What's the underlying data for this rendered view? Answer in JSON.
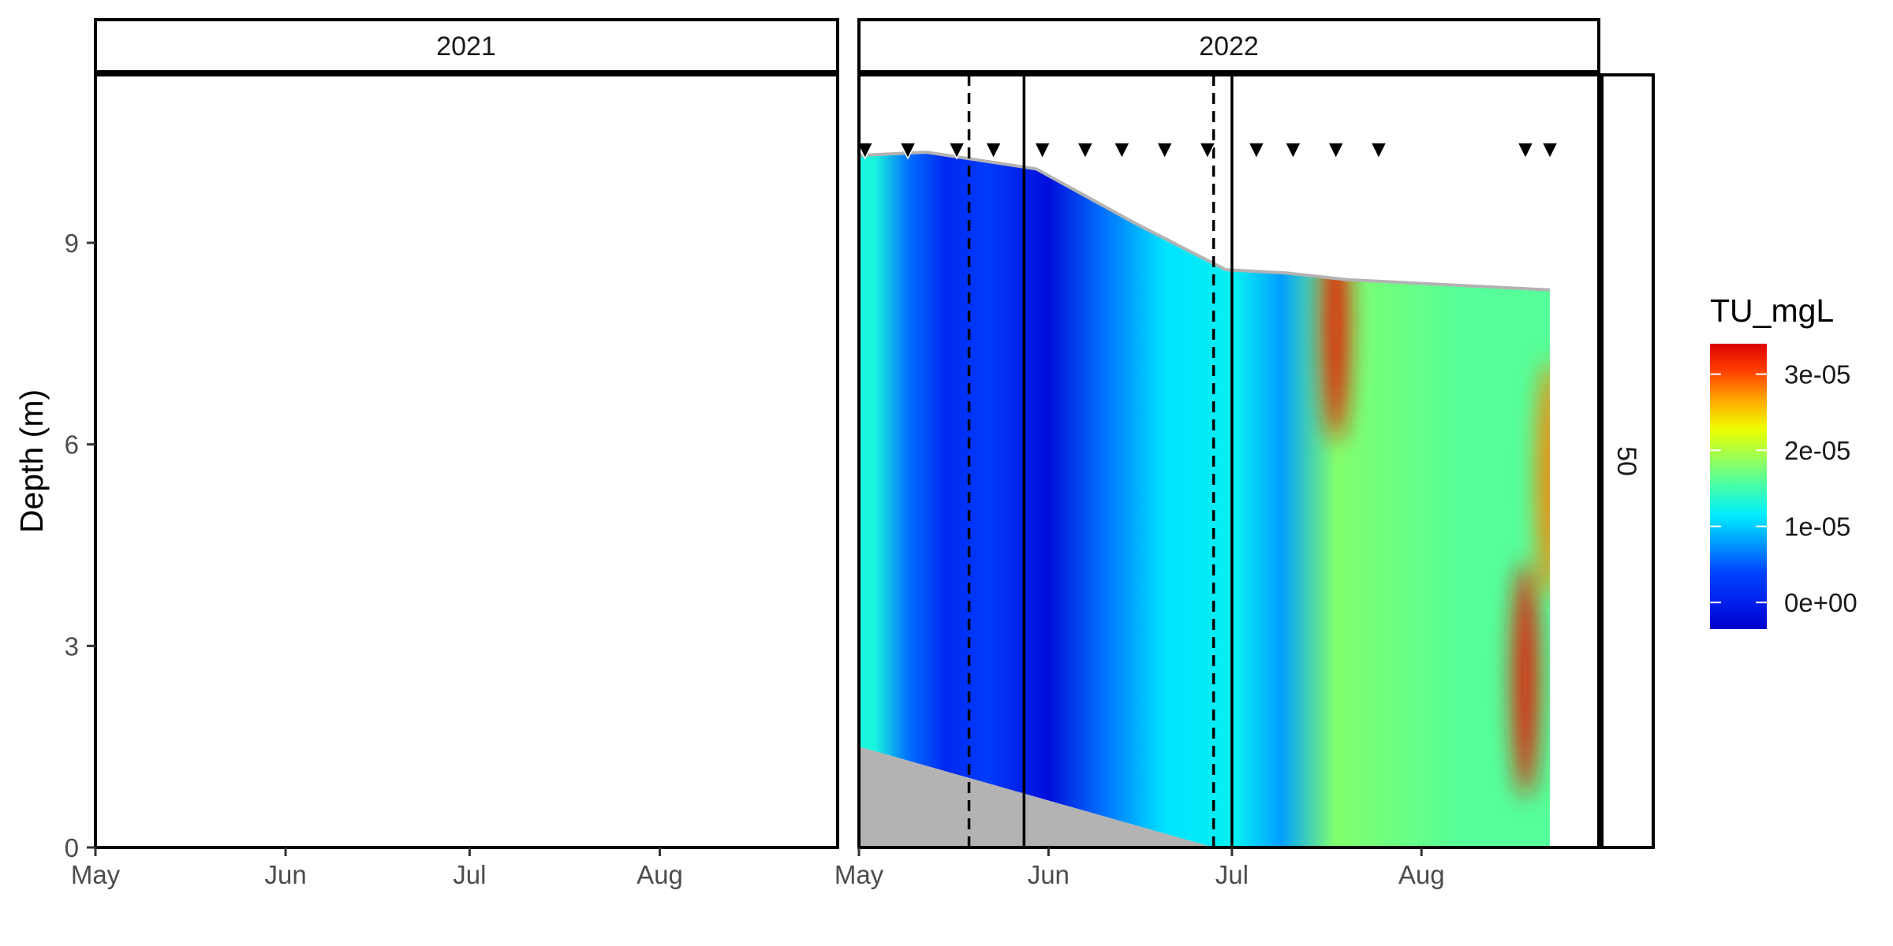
{
  "chart_data": {
    "type": "heatmap",
    "title": "",
    "ylabel": "Depth (m)",
    "xlabel": "",
    "ylim": [
      0,
      11.5
    ],
    "yticks": [
      0,
      3,
      6,
      9
    ],
    "xticks": [
      "May",
      "Jun",
      "Jul",
      "Aug"
    ],
    "x_range_doy": [
      121,
      242
    ],
    "x_tick_doy": [
      121,
      152,
      182,
      213
    ],
    "grid": false,
    "panels": [
      {
        "strip": "2021",
        "has_data": false
      },
      {
        "strip": "2022",
        "has_data": true
      }
    ],
    "row_strip": "50",
    "legend": {
      "title": "TU_mgL",
      "placement": "right",
      "breaks": [
        "0e+00",
        "1e-05",
        "2e-05",
        "3e-05"
      ],
      "break_values": [
        0,
        1e-05,
        2e-05,
        3e-05
      ],
      "range": [
        -3.5e-06,
        3.4e-05
      ],
      "colors": [
        "#0000CC",
        "#0022EE",
        "#0044FF",
        "#0099FF",
        "#00EEFF",
        "#44FFAA",
        "#99FF55",
        "#EEFF00",
        "#FFAA00",
        "#FF4400",
        "#DD0000"
      ]
    },
    "sampling_dates": [
      "2022-05-02",
      "2022-05-09",
      "2022-05-17",
      "2022-05-23",
      "2022-05-31",
      "2022-06-07",
      "2022-06-13",
      "2022-06-20",
      "2022-06-27",
      "2022-07-05",
      "2022-07-11",
      "2022-07-18",
      "2022-07-25",
      "2022-08-18",
      "2022-08-22"
    ],
    "vlines_dashed": [
      "2022-05-19",
      "2022-06-28"
    ],
    "vlines_solid": [
      "2022-05-28",
      "2022-07-01"
    ],
    "surface_depth": [
      {
        "x": "2022-05-01",
        "y": 10.3
      },
      {
        "x": "2022-05-12",
        "y": 10.35
      },
      {
        "x": "2022-05-30",
        "y": 10.1
      },
      {
        "x": "2022-06-15",
        "y": 9.3
      },
      {
        "x": "2022-06-30",
        "y": 8.6
      },
      {
        "x": "2022-07-10",
        "y": 8.55
      },
      {
        "x": "2022-07-20",
        "y": 8.45
      },
      {
        "x": "2022-08-22",
        "y": 8.3
      }
    ],
    "bottom_depth": [
      {
        "x": "2022-05-01",
        "y": 1.5
      },
      {
        "x": "2022-06-28",
        "y": 0.0
      },
      {
        "x": "2022-08-22",
        "y": 0.0
      }
    ],
    "value_bands": [
      {
        "x0": "2022-05-01",
        "x1": "2022-05-06",
        "value": 1.3e-05
      },
      {
        "x0": "2022-05-06",
        "x1": "2022-05-12",
        "value": 6e-06
      },
      {
        "x0": "2022-05-12",
        "x1": "2022-05-18",
        "value": 1e-06
      },
      {
        "x0": "2022-05-18",
        "x1": "2022-05-26",
        "value": 3e-06
      },
      {
        "x0": "2022-05-26",
        "x1": "2022-06-07",
        "value": -2e-06
      },
      {
        "x0": "2022-06-07",
        "x1": "2022-06-13",
        "value": 6e-06
      },
      {
        "x0": "2022-06-13",
        "x1": "2022-06-27",
        "value": 1.1e-05
      },
      {
        "x0": "2022-06-27",
        "x1": "2022-07-06",
        "value": 1.2e-05
      },
      {
        "x0": "2022-07-06",
        "x1": "2022-07-12",
        "value": 8e-06
      },
      {
        "x0": "2022-07-12",
        "x1": "2022-07-24",
        "value": 1.8e-05
      },
      {
        "x0": "2022-07-24",
        "x1": "2022-08-22",
        "value": 1.6e-05
      }
    ],
    "hotspots": [
      {
        "x": "2022-07-18",
        "y": 7.8,
        "value": 3.3e-05
      },
      {
        "x": "2022-08-18",
        "y": 2.5,
        "value": 3.3e-05
      },
      {
        "x": "2022-08-22",
        "y": 5.5,
        "value": 2.8e-05
      }
    ]
  }
}
